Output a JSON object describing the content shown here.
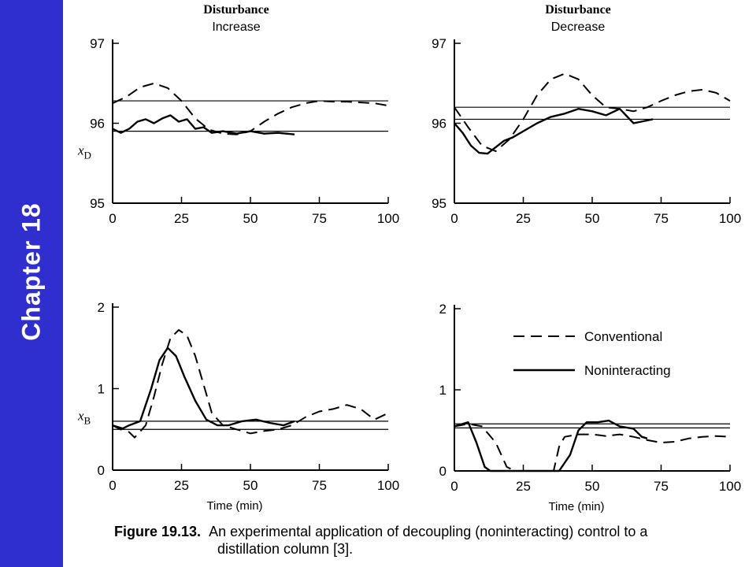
{
  "sidebar": {
    "label": "Chapter 18",
    "color": "#2f2fd0"
  },
  "caption": {
    "figure_label": "Figure 19.13.",
    "line1": "An experimental application of decoupling (noninteracting) control to a",
    "line2": "distillation column [3]."
  },
  "legend": {
    "conventional": "Conventional",
    "noninteracting": "Noninteracting"
  },
  "chart_data": [
    {
      "type": "line",
      "title": "Disturbance",
      "subtitle": "Increase",
      "ylabel": "xD",
      "xlabel": "",
      "xlim": [
        0,
        100
      ],
      "ylim": [
        95,
        97
      ],
      "xticks": [
        "0",
        "25",
        "50",
        "75",
        "100"
      ],
      "yticks": [
        "95",
        "96",
        "97"
      ],
      "setpoints": [
        96.28,
        95.9
      ],
      "series": [
        {
          "name": "Conventional",
          "style": "dashed",
          "x": [
            0,
            5,
            10,
            15,
            20,
            25,
            30,
            35,
            40,
            45,
            50,
            55,
            60,
            65,
            70,
            75,
            80,
            85,
            90,
            95,
            100
          ],
          "y": [
            96.25,
            96.33,
            96.45,
            96.5,
            96.44,
            96.28,
            96.06,
            95.92,
            95.87,
            95.86,
            95.9,
            96.02,
            96.12,
            96.2,
            96.25,
            96.28,
            96.27,
            96.27,
            96.26,
            96.25,
            96.22
          ]
        },
        {
          "name": "Noninteracting",
          "style": "solid",
          "x": [
            0,
            3,
            6,
            9,
            12,
            15,
            18,
            21,
            24,
            27,
            30,
            33,
            36,
            40,
            45,
            50,
            55,
            60,
            66
          ],
          "y": [
            95.93,
            95.88,
            95.93,
            96.02,
            96.05,
            96.0,
            96.06,
            96.1,
            96.02,
            96.05,
            95.93,
            95.95,
            95.88,
            95.9,
            95.87,
            95.9,
            95.87,
            95.88,
            95.86
          ]
        }
      ]
    },
    {
      "type": "line",
      "title": "Disturbance",
      "subtitle": "Decrease",
      "ylabel": "",
      "xlabel": "",
      "xlim": [
        0,
        100
      ],
      "ylim": [
        95,
        97
      ],
      "xticks": [
        "0",
        "25",
        "50",
        "75",
        "100"
      ],
      "yticks": [
        "95",
        "96",
        "97"
      ],
      "setpoints": [
        96.2,
        96.05
      ],
      "series": [
        {
          "name": "Conventional",
          "style": "dashed",
          "x": [
            0,
            5,
            10,
            15,
            20,
            25,
            30,
            35,
            40,
            45,
            50,
            55,
            60,
            65,
            70,
            75,
            80,
            85,
            90,
            95,
            100
          ],
          "y": [
            96.2,
            95.95,
            95.72,
            95.65,
            95.8,
            96.05,
            96.35,
            96.55,
            96.62,
            96.55,
            96.35,
            96.2,
            96.18,
            96.15,
            96.2,
            96.28,
            96.35,
            96.4,
            96.42,
            96.38,
            96.28
          ]
        },
        {
          "name": "Noninteracting",
          "style": "solid",
          "x": [
            0,
            3,
            6,
            9,
            12,
            15,
            18,
            21,
            25,
            30,
            35,
            40,
            45,
            50,
            55,
            60,
            65,
            72
          ],
          "y": [
            96.0,
            95.88,
            95.72,
            95.63,
            95.62,
            95.7,
            95.78,
            95.82,
            95.9,
            96.0,
            96.08,
            96.12,
            96.18,
            96.15,
            96.1,
            96.18,
            96.0,
            96.05
          ]
        }
      ]
    },
    {
      "type": "line",
      "title": "",
      "subtitle": "",
      "ylabel": "xB",
      "xlabel": "Time (min)",
      "xlim": [
        0,
        100
      ],
      "ylim": [
        0,
        2
      ],
      "xticks": [
        "0",
        "25",
        "50",
        "75",
        "100"
      ],
      "yticks": [
        "0",
        "1",
        "2"
      ],
      "setpoints": [
        0.6,
        0.5
      ],
      "series": [
        {
          "name": "Conventional",
          "style": "dashed",
          "x": [
            0,
            5,
            8,
            12,
            15,
            18,
            21,
            24,
            27,
            30,
            33,
            36,
            40,
            45,
            50,
            55,
            60,
            65,
            70,
            75,
            80,
            85,
            90,
            95,
            100
          ],
          "y": [
            0.55,
            0.5,
            0.4,
            0.55,
            0.9,
            1.3,
            1.62,
            1.72,
            1.65,
            1.4,
            1.05,
            0.7,
            0.55,
            0.5,
            0.45,
            0.48,
            0.5,
            0.55,
            0.65,
            0.72,
            0.75,
            0.8,
            0.75,
            0.62,
            0.7
          ]
        },
        {
          "name": "Noninteracting",
          "style": "solid",
          "x": [
            0,
            3,
            6,
            10,
            14,
            17,
            20,
            23,
            26,
            30,
            34,
            38,
            42,
            47,
            52,
            57,
            62,
            66
          ],
          "y": [
            0.55,
            0.5,
            0.55,
            0.6,
            1.0,
            1.35,
            1.5,
            1.4,
            1.15,
            0.85,
            0.62,
            0.55,
            0.55,
            0.6,
            0.62,
            0.58,
            0.55,
            0.6
          ]
        }
      ]
    },
    {
      "type": "line",
      "title": "",
      "subtitle": "",
      "ylabel": "",
      "xlabel": "Time (min)",
      "xlim": [
        0,
        100
      ],
      "ylim": [
        0,
        2
      ],
      "xticks": [
        "0",
        "25",
        "50",
        "75",
        "100"
      ],
      "yticks": [
        "0",
        "1",
        "2"
      ],
      "setpoints": [
        0.58,
        0.53
      ],
      "series": [
        {
          "name": "Conventional",
          "style": "dashed",
          "x": [
            0,
            5,
            10,
            15,
            19,
            22,
            30,
            36,
            38,
            40,
            45,
            50,
            55,
            60,
            65,
            70,
            75,
            80,
            85,
            90,
            95,
            100
          ],
          "y": [
            0.55,
            0.58,
            0.55,
            0.35,
            0.05,
            0.0,
            0.0,
            0.0,
            0.3,
            0.42,
            0.45,
            0.45,
            0.43,
            0.45,
            0.42,
            0.38,
            0.35,
            0.36,
            0.4,
            0.42,
            0.43,
            0.42
          ]
        },
        {
          "name": "Noninteracting",
          "style": "solid",
          "x": [
            0,
            5,
            8,
            11,
            13,
            20,
            30,
            38,
            42,
            45,
            48,
            52,
            56,
            60,
            65,
            68,
            70
          ],
          "y": [
            0.55,
            0.6,
            0.35,
            0.05,
            0.0,
            0.0,
            0.0,
            0.0,
            0.2,
            0.5,
            0.6,
            0.6,
            0.62,
            0.55,
            0.52,
            0.42,
            0.4
          ]
        }
      ]
    }
  ]
}
